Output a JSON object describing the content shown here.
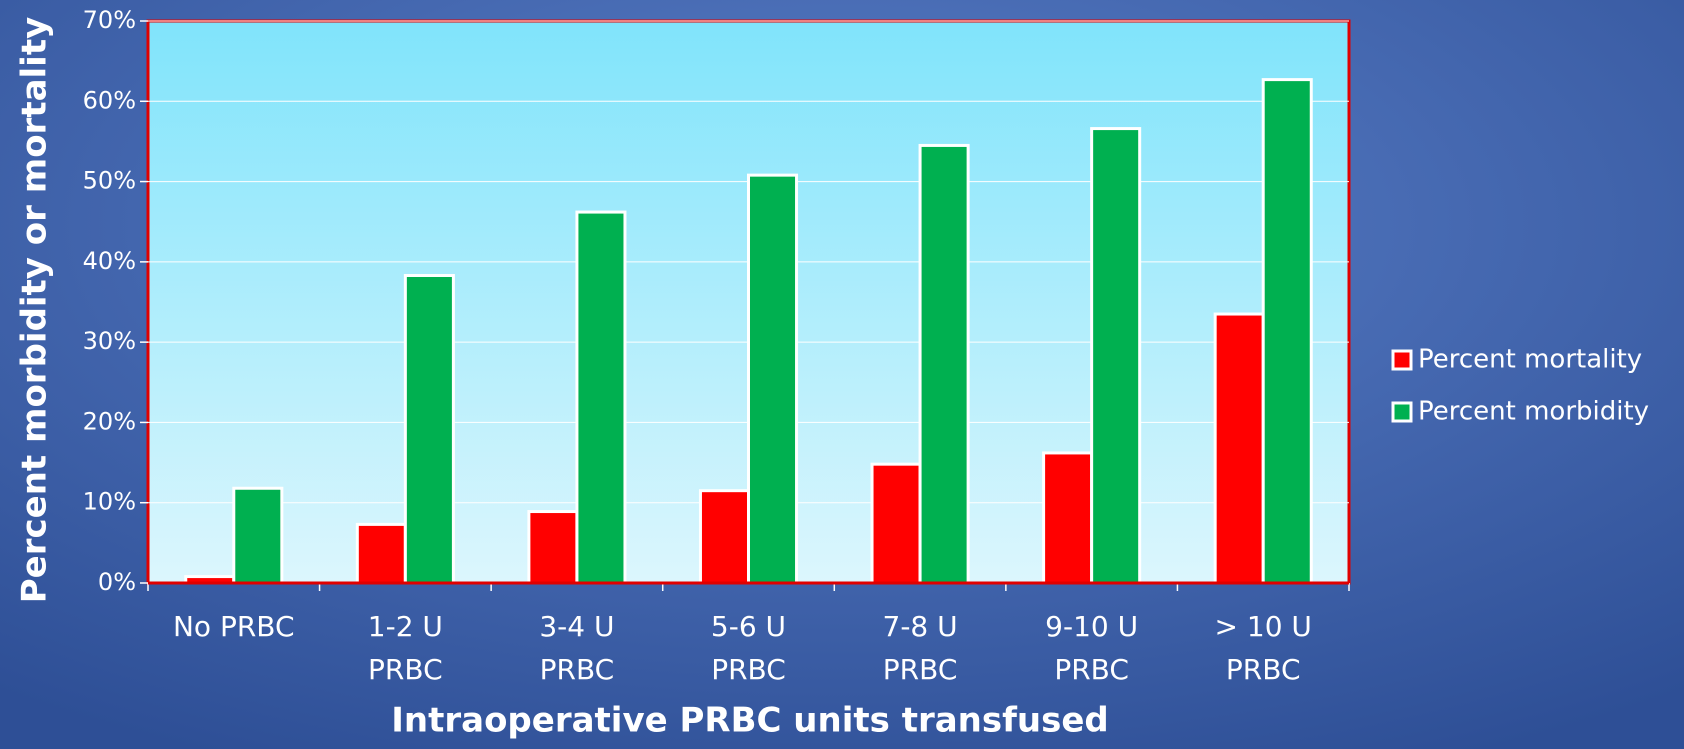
{
  "chart_data": {
    "type": "bar",
    "x_label": "Intraoperative PRBC units transfused",
    "y_label": "Percent morbidity or mortality",
    "categories": [
      [
        "No PRBC"
      ],
      [
        "1-2 U",
        "PRBC"
      ],
      [
        "3-4 U",
        "PRBC"
      ],
      [
        "5-6 U",
        "PRBC"
      ],
      [
        "7-8 U",
        "PRBC"
      ],
      [
        "9-10 U",
        "PRBC"
      ],
      [
        "> 10 U",
        "PRBC"
      ]
    ],
    "series": [
      {
        "name": "Percent mortality",
        "color": "#ff0000",
        "values": [
          0.8,
          7.3,
          8.9,
          11.5,
          14.8,
          16.2,
          33.5
        ]
      },
      {
        "name": "Percent morbidity",
        "color": "#00b050",
        "values": [
          11.8,
          38.3,
          46.2,
          50.8,
          54.5,
          56.6,
          62.7
        ]
      }
    ],
    "ylim": [
      0,
      70
    ],
    "yticks": [
      {
        "value": 0,
        "label": "0%"
      },
      {
        "value": 10,
        "label": "10%"
      },
      {
        "value": 20,
        "label": "20%"
      },
      {
        "value": 30,
        "label": "30%"
      },
      {
        "value": 40,
        "label": "40%"
      },
      {
        "value": 50,
        "label": "50%"
      },
      {
        "value": 60,
        "label": "60%"
      },
      {
        "value": 70,
        "label": "70%"
      }
    ],
    "grid": true
  }
}
